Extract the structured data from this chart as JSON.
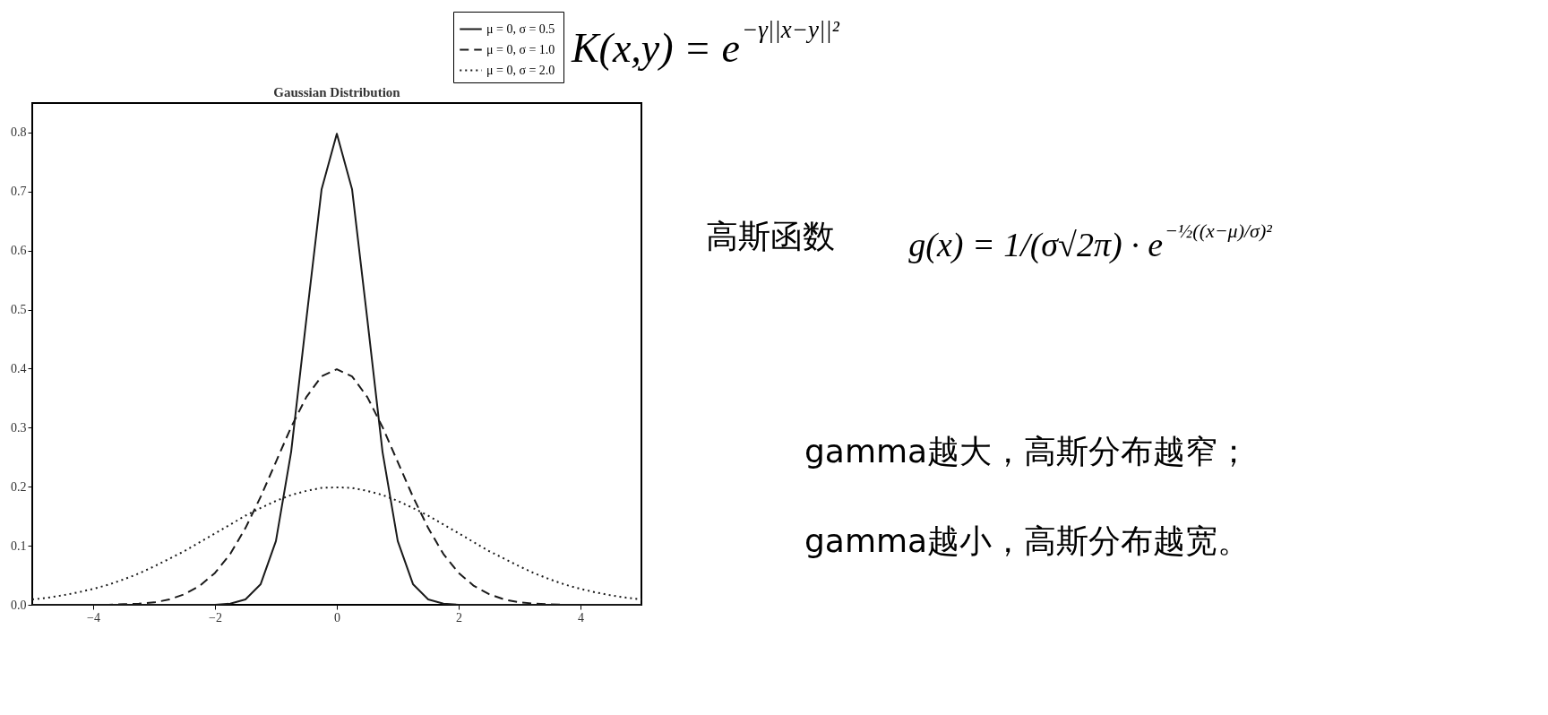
{
  "chart_data": {
    "type": "line",
    "title": "Gaussian Distribution",
    "x": [
      -5,
      -4.75,
      -4.5,
      -4.25,
      -4,
      -3.75,
      -3.5,
      -3.25,
      -3,
      -2.75,
      -2.5,
      -2.25,
      -2,
      -1.75,
      -1.5,
      -1.25,
      -1,
      -0.75,
      -0.5,
      -0.25,
      0,
      0.25,
      0.5,
      0.75,
      1,
      1.25,
      1.5,
      1.75,
      2,
      2.25,
      2.5,
      2.75,
      3,
      3.25,
      3.5,
      3.75,
      4,
      4.25,
      4.5,
      4.75,
      5
    ],
    "series": [
      {
        "name": "μ = 0,  σ = 0.5",
        "color": "#1a1a1a",
        "line_style": "solid",
        "values": [
          0,
          0,
          0,
          0,
          0,
          0,
          0,
          0,
          0,
          0,
          0,
          0,
          0,
          0.002,
          0.009,
          0.035,
          0.108,
          0.259,
          0.484,
          0.704,
          0.798,
          0.704,
          0.484,
          0.259,
          0.108,
          0.035,
          0.009,
          0.002,
          0,
          0,
          0,
          0,
          0,
          0,
          0,
          0,
          0,
          0,
          0,
          0,
          0
        ]
      },
      {
        "name": "μ = 0,  σ = 1.0",
        "color": "#1a1a1a",
        "line_style": "dashed",
        "values": [
          0,
          0,
          0,
          0,
          0,
          0,
          0.001,
          0.002,
          0.004,
          0.009,
          0.018,
          0.032,
          0.054,
          0.086,
          0.13,
          0.183,
          0.242,
          0.301,
          0.352,
          0.387,
          0.399,
          0.387,
          0.352,
          0.301,
          0.242,
          0.183,
          0.13,
          0.086,
          0.054,
          0.032,
          0.018,
          0.009,
          0.004,
          0.002,
          0.001,
          0,
          0,
          0,
          0,
          0,
          0
        ]
      },
      {
        "name": "μ = 0,  σ = 2.0",
        "color": "#1a1a1a",
        "line_style": "dotted",
        "values": [
          0.009,
          0.012,
          0.016,
          0.021,
          0.027,
          0.034,
          0.043,
          0.053,
          0.065,
          0.078,
          0.091,
          0.106,
          0.121,
          0.136,
          0.151,
          0.164,
          0.176,
          0.186,
          0.193,
          0.198,
          0.199,
          0.198,
          0.193,
          0.186,
          0.176,
          0.164,
          0.151,
          0.136,
          0.121,
          0.106,
          0.091,
          0.078,
          0.065,
          0.053,
          0.043,
          0.034,
          0.027,
          0.021,
          0.016,
          0.012,
          0.009
        ]
      }
    ],
    "xlim": [
      -5,
      5
    ],
    "xticks": [
      -4,
      -2,
      0,
      2,
      4
    ],
    "ylim": [
      0,
      0.85
    ],
    "yticks": [
      {
        "value": 0,
        "label": "0.0"
      },
      0.1,
      0.2,
      0.3,
      0.4,
      0.5,
      0.6,
      0.7,
      0.8
    ],
    "grid": false,
    "legend": "top right",
    "marker": "none",
    "annotations": [
      "K(x,y) = e$^{−γ||x−y||²}$",
      "高斯函数",
      "g(x) = 1/(σ√2π) · e$^{−½((x−μ)/σ)²}$",
      "gamma越大，高斯分布越窄；",
      "gamma越小，高斯分布越宽。"
    ]
  }
}
